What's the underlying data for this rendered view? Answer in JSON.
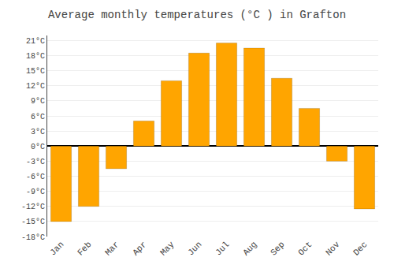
{
  "chart_data": {
    "type": "bar",
    "title": "Average monthly temperatures (°C ) in Grafton",
    "categories": [
      "Jan",
      "Feb",
      "Mar",
      "Apr",
      "May",
      "Jun",
      "Jul",
      "Aug",
      "Sep",
      "Oct",
      "Nov",
      "Dec"
    ],
    "values": [
      -15,
      -12,
      -4.5,
      5,
      13,
      18.5,
      20.5,
      19.5,
      13.5,
      7.5,
      -3,
      -12.5
    ],
    "color": "#FFA500",
    "ylim": [
      -18,
      22
    ],
    "yticks": [
      {
        "value": -18,
        "label": "-18°C"
      },
      {
        "value": -15,
        "label": "-15°C"
      },
      {
        "value": -12,
        "label": "-12°C"
      },
      {
        "value": -9,
        "label": "-9°C"
      },
      {
        "value": -6,
        "label": "-6°C"
      },
      {
        "value": -3,
        "label": "-3°C"
      },
      {
        "value": 0,
        "label": "0°C"
      },
      {
        "value": 3,
        "label": "3°C"
      },
      {
        "value": 6,
        "label": "6°C"
      },
      {
        "value": 9,
        "label": "9°C"
      },
      {
        "value": 12,
        "label": "12°C"
      },
      {
        "value": 15,
        "label": "15°C"
      },
      {
        "value": 18,
        "label": "18°C"
      },
      {
        "value": 21,
        "label": "21°C"
      }
    ],
    "grid": true
  }
}
